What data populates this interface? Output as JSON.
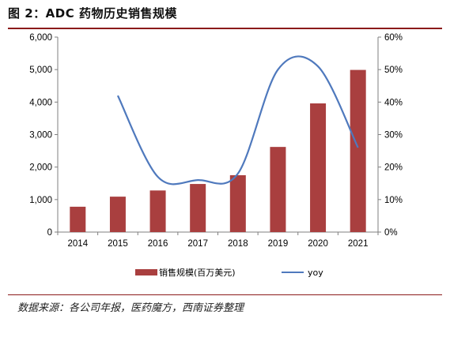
{
  "figure_title": "图 2：ADC 药物历史销售规模",
  "source_note": "数据来源：各公司年报，医药魔方，西南证券整理",
  "colors": {
    "bar": "#a93f3f",
    "line": "#4f79bd",
    "rule": "#8b1a1a",
    "axis": "#7f7f7f"
  },
  "chart_data": {
    "type": "bar",
    "categories": [
      "2014",
      "2015",
      "2016",
      "2017",
      "2018",
      "2019",
      "2020",
      "2021"
    ],
    "series": [
      {
        "name": "销售规模(百万美元)",
        "type": "bar",
        "axis": "left",
        "values": [
          780,
          1090,
          1280,
          1480,
          1750,
          2620,
          3960,
          4990
        ]
      },
      {
        "name": "yoy",
        "type": "line",
        "axis": "right",
        "values": [
          null,
          0.42,
          0.17,
          0.16,
          0.18,
          0.5,
          0.51,
          0.26
        ]
      }
    ],
    "ylim_left": [
      0,
      6000
    ],
    "ylim_right": [
      0,
      0.6
    ],
    "y_ticks_left": [
      "0",
      "1,000",
      "2,000",
      "3,000",
      "4,000",
      "5,000",
      "6,000"
    ],
    "y_ticks_right": [
      "0%",
      "10%",
      "20%",
      "30%",
      "40%",
      "50%",
      "60%"
    ],
    "legend_position": "bottom",
    "grid": false
  }
}
